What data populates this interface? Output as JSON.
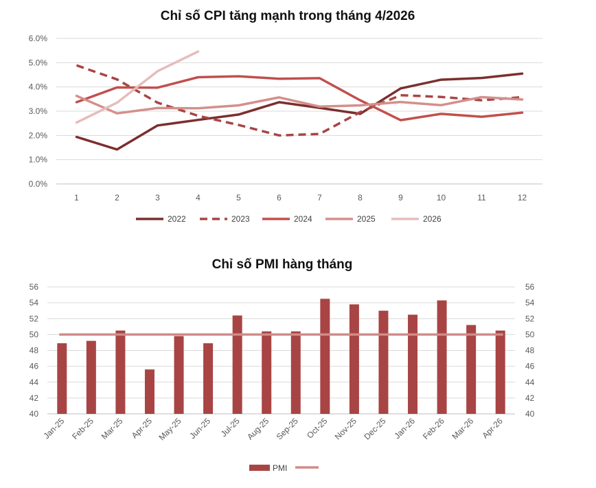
{
  "chart_data": [
    {
      "type": "line",
      "title": "Chỉ số CPI tăng mạnh trong tháng 4/2026",
      "xlabel": "",
      "ylabel": "",
      "categories": [
        "1",
        "2",
        "3",
        "4",
        "5",
        "6",
        "7",
        "8",
        "9",
        "10",
        "11",
        "12"
      ],
      "ylim": [
        0,
        6
      ],
      "yticks": [
        "0.0%",
        "1.0%",
        "2.0%",
        "3.0%",
        "4.0%",
        "5.0%",
        "6.0%"
      ],
      "grid": true,
      "legend": "bottom",
      "series": [
        {
          "name": "2022",
          "color": "#7b2f2f",
          "dashed": false,
          "values": [
            1.94,
            1.42,
            2.41,
            2.64,
            2.86,
            3.37,
            3.14,
            2.89,
            3.94,
            4.3,
            4.37,
            4.55
          ]
        },
        {
          "name": "2023",
          "color": "#a94444",
          "dashed": true,
          "values": [
            4.89,
            4.31,
            3.35,
            2.81,
            2.43,
            2.0,
            2.06,
            2.96,
            3.66,
            3.59,
            3.45,
            3.58
          ]
        },
        {
          "name": "2024",
          "color": "#c0504d",
          "dashed": false,
          "values": [
            3.37,
            3.98,
            3.97,
            4.4,
            4.44,
            4.34,
            4.36,
            3.45,
            2.63,
            2.89,
            2.77,
            2.94
          ]
        },
        {
          "name": "2025",
          "color": "#d48f8b",
          "dashed": false,
          "values": [
            3.63,
            2.91,
            3.13,
            3.12,
            3.24,
            3.57,
            3.19,
            3.24,
            3.38,
            3.25,
            3.58,
            3.48
          ]
        },
        {
          "name": "2026",
          "color": "#e6bcbc",
          "dashed": false,
          "values": [
            2.53,
            3.35,
            4.65,
            5.46,
            null,
            null,
            null,
            null,
            null,
            null,
            null,
            null
          ]
        }
      ]
    },
    {
      "type": "bar",
      "title": "Chỉ số PMI hàng tháng",
      "xlabel": "",
      "ylabel": "",
      "categories": [
        "Jan-25",
        "Feb-25",
        "Mar-25",
        "Apr-25",
        "May-25",
        "Jun-25",
        "Jul-25",
        "Aug-25",
        "Sep-25",
        "Oct-25",
        "Nov-25",
        "Dec-25",
        "Jan-26",
        "Feb-26",
        "Mar-26",
        "Apr-26"
      ],
      "ylim": [
        40,
        56
      ],
      "yticks": [
        "40",
        "42",
        "44",
        "46",
        "48",
        "50",
        "52",
        "54",
        "56"
      ],
      "grid": true,
      "legend": "bottom",
      "series": [
        {
          "name": "PMI",
          "color": "#a94444",
          "values": [
            48.9,
            49.2,
            50.5,
            45.6,
            49.8,
            48.9,
            52.4,
            50.4,
            50.4,
            54.5,
            53.8,
            53.0,
            52.5,
            54.3,
            51.2,
            50.5
          ]
        },
        {
          "name": "",
          "color": "#d08b88",
          "type": "line",
          "values": [
            50,
            50,
            50,
            50,
            50,
            50,
            50,
            50,
            50,
            50,
            50,
            50,
            50,
            50,
            50,
            50
          ]
        }
      ]
    }
  ]
}
